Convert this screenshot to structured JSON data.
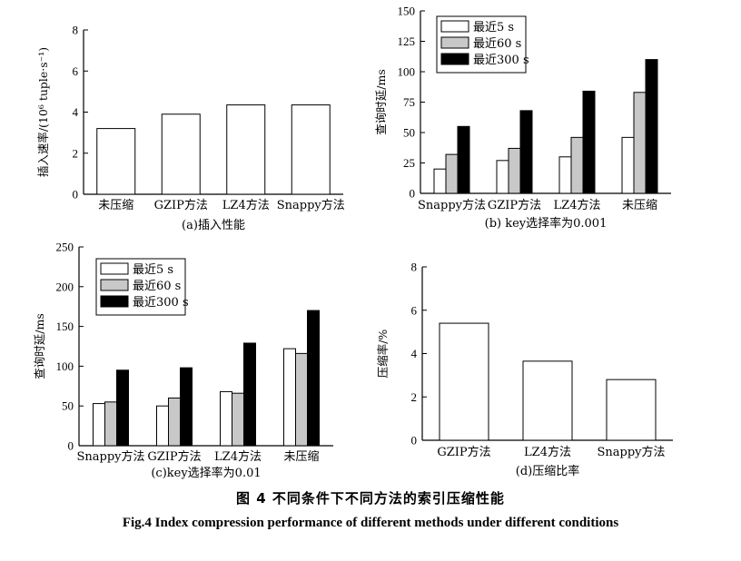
{
  "figure": {
    "caption_cn": "图 4    不同条件下不同方法的索引压缩性能",
    "caption_en": "Fig.4    Index compression performance of different methods under different conditions"
  },
  "chart_data": [
    {
      "id": "a",
      "type": "bar",
      "title": "(a)插入性能",
      "ylabel": "插入速率/(10⁶ tuple·s⁻¹)",
      "ylim": [
        0,
        8
      ],
      "yticks": [
        0,
        2,
        4,
        6,
        8
      ],
      "categories": [
        "未压缩",
        "GZIP方法",
        "LZ4方法",
        "Snappy方法"
      ],
      "series": [
        {
          "values": [
            3.2,
            3.9,
            4.35,
            4.35
          ],
          "color": "#ffffff"
        }
      ],
      "grid": false
    },
    {
      "id": "b",
      "type": "bar",
      "title": "(b) key选择率为0.001",
      "ylabel": "查询时延/ms",
      "ylim": [
        0,
        150
      ],
      "yticks": [
        0,
        25,
        50,
        75,
        100,
        125,
        150
      ],
      "categories": [
        "Snappy方法",
        "GZIP方法",
        "LZ4方法",
        "未压缩"
      ],
      "series": [
        {
          "name": "最近5 s",
          "values": [
            20,
            27,
            30,
            46
          ],
          "color": "#ffffff"
        },
        {
          "name": "最近60 s",
          "values": [
            32,
            37,
            46,
            83
          ],
          "color": "#c8c8c8"
        },
        {
          "name": "最近300 s",
          "values": [
            55,
            68,
            84,
            110
          ],
          "color": "#000000"
        }
      ],
      "legend": "top-left",
      "grid": false
    },
    {
      "id": "c",
      "type": "bar",
      "title": "(c)key选择率为0.01",
      "ylabel": "查询时延/ms",
      "ylim": [
        0,
        250
      ],
      "yticks": [
        0,
        50,
        100,
        150,
        200,
        250
      ],
      "categories": [
        "Snappy方法",
        "GZIP方法",
        "LZ4方法",
        "未压缩"
      ],
      "series": [
        {
          "name": "最近5 s",
          "values": [
            53,
            50,
            68,
            122
          ],
          "color": "#ffffff"
        },
        {
          "name": "最近60 s",
          "values": [
            55,
            60,
            66,
            116
          ],
          "color": "#c8c8c8"
        },
        {
          "name": "最近300 s",
          "values": [
            95,
            98,
            129,
            170
          ],
          "color": "#000000"
        }
      ],
      "legend": "top-left",
      "grid": false
    },
    {
      "id": "d",
      "type": "bar",
      "title": "(d)压缩比率",
      "ylabel": "压缩率/%",
      "ylim": [
        0,
        8
      ],
      "yticks": [
        0,
        2,
        4,
        6,
        8
      ],
      "categories": [
        "GZIP方法",
        "LZ4方法",
        "Snappy方法"
      ],
      "series": [
        {
          "values": [
            5.4,
            3.65,
            2.8
          ],
          "color": "#ffffff"
        }
      ],
      "grid": false
    }
  ]
}
